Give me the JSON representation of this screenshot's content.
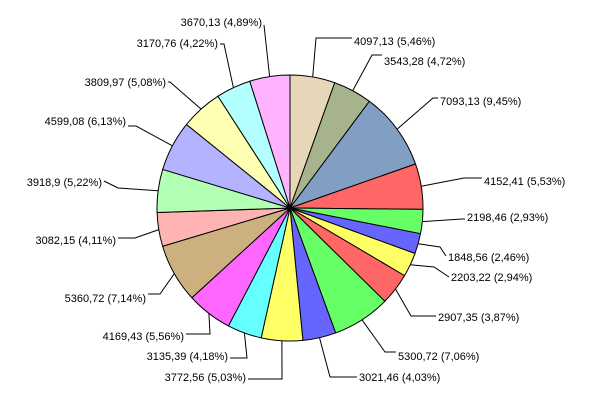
{
  "chart_data": {
    "type": "pie",
    "title": "",
    "start_angle_deg": 0,
    "direction": "clockwise",
    "slices": [
      {
        "value": 4097.13,
        "percent": 5.46,
        "label": "4097,13 (5,46%)",
        "color": "#E6D7B8"
      },
      {
        "value": 3543.28,
        "percent": 4.72,
        "label": "3543,28 (4,72%)",
        "color": "#A6B38C"
      },
      {
        "value": 7093.13,
        "percent": 9.45,
        "label": "7093,13 (9,45%)",
        "color": "#809FC2"
      },
      {
        "value": 4152.41,
        "percent": 5.53,
        "label": "4152,41 (5,53%)",
        "color": "#FF6666"
      },
      {
        "value": 2198.46,
        "percent": 2.93,
        "label": "2198,46 (2,93%)",
        "color": "#66FF66"
      },
      {
        "value": 1848.56,
        "percent": 2.46,
        "label": "1848,56 (2,46%)",
        "color": "#6666FF"
      },
      {
        "value": 2203.22,
        "percent": 2.94,
        "label": "2203,22 (2,94%)",
        "color": "#FFFF66"
      },
      {
        "value": 2907.35,
        "percent": 3.87,
        "label": "2907,35 (3,87%)",
        "color": "#FF6666"
      },
      {
        "value": 5300.72,
        "percent": 7.06,
        "label": "5300,72 (7,06%)",
        "color": "#66FF66"
      },
      {
        "value": 3021.46,
        "percent": 4.03,
        "label": "3021,46 (4,03%)",
        "color": "#6666FF"
      },
      {
        "value": 3772.56,
        "percent": 5.03,
        "label": "3772,56 (5,03%)",
        "color": "#FFFF66"
      },
      {
        "value": 3135.39,
        "percent": 4.18,
        "label": "3135,39 (4,18%)",
        "color": "#66FFFF"
      },
      {
        "value": 4169.43,
        "percent": 5.56,
        "label": "4169,43 (5,56%)",
        "color": "#FF66FF"
      },
      {
        "value": 5360.72,
        "percent": 7.14,
        "label": "5360,72 (7,14%)",
        "color": "#CCB080"
      },
      {
        "value": 3082.15,
        "percent": 4.11,
        "label": "3082,15 (4,11%)",
        "color": "#FFB3B3"
      },
      {
        "value": 3918.9,
        "percent": 5.22,
        "label": "3918,9 (5,22%)",
        "color": "#B3FFB3"
      },
      {
        "value": 4599.08,
        "percent": 6.13,
        "label": "4599,08 (6,13%)",
        "color": "#B3B3FF"
      },
      {
        "value": 3809.97,
        "percent": 5.08,
        "label": "3809,97 (5,08%)",
        "color": "#FFFFB3"
      },
      {
        "value": 3170.76,
        "percent": 4.22,
        "label": "3170,76 (4,22%)",
        "color": "#B3FFFF"
      },
      {
        "value": 3670.13,
        "percent": 4.89,
        "label": "3670,13 (4,89%)",
        "color": "#FFB3FF"
      }
    ]
  }
}
